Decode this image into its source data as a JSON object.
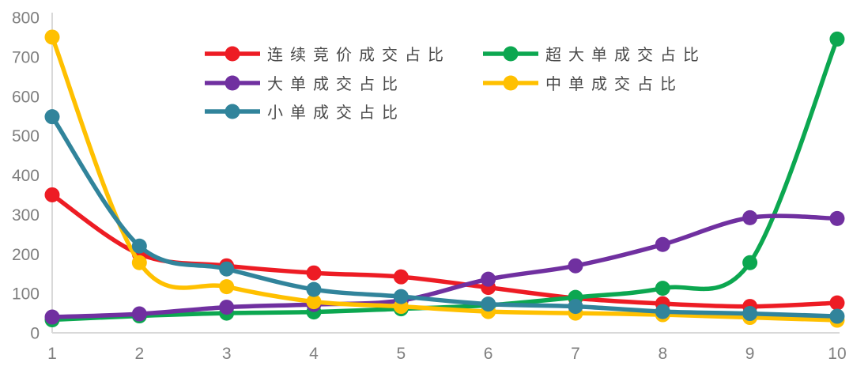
{
  "chart_data": {
    "type": "line",
    "title": "",
    "xlabel": "",
    "ylabel": "",
    "x": [
      1,
      2,
      3,
      4,
      5,
      6,
      7,
      8,
      9,
      10
    ],
    "ylim": [
      0,
      800
    ],
    "ytick_step": 100,
    "grid": false,
    "smooth": true,
    "legend_position": "top-left, two columns",
    "series": [
      {
        "id": "continuous-auction",
        "name": "连续竞价成交占比",
        "color": "#ed1c24",
        "values": [
          350,
          200,
          170,
          152,
          142,
          115,
          88,
          74,
          67,
          76
        ]
      },
      {
        "id": "super-large-order",
        "name": "超大单成交占比",
        "color": "#0ca750",
        "values": [
          33,
          43,
          50,
          53,
          61,
          70,
          90,
          113,
          178,
          745
        ]
      },
      {
        "id": "large-order",
        "name": "大单成交占比",
        "color": "#7030a0",
        "values": [
          40,
          48,
          65,
          72,
          82,
          136,
          170,
          224,
          292,
          290
        ]
      },
      {
        "id": "medium-order",
        "name": "中单成交占比",
        "color": "#ffc000",
        "values": [
          750,
          178,
          117,
          79,
          67,
          54,
          50,
          46,
          39,
          32
        ]
      },
      {
        "id": "small-order",
        "name": "小单成交占比",
        "color": "#31849b",
        "values": [
          548,
          220,
          162,
          110,
          92,
          73,
          67,
          54,
          49,
          42
        ]
      }
    ]
  },
  "axis": {
    "x_tick_labels": [
      "1",
      "2",
      "3",
      "4",
      "5",
      "6",
      "7",
      "8",
      "9",
      "10"
    ],
    "y_tick_labels": [
      "0",
      "100",
      "200",
      "300",
      "400",
      "500",
      "600",
      "700",
      "800"
    ],
    "axis_line_color": "#d9d9d9",
    "tick_label_color": "#7f7f7f"
  },
  "legend": {
    "columns": 2,
    "text_color": "#4a4a4a"
  }
}
